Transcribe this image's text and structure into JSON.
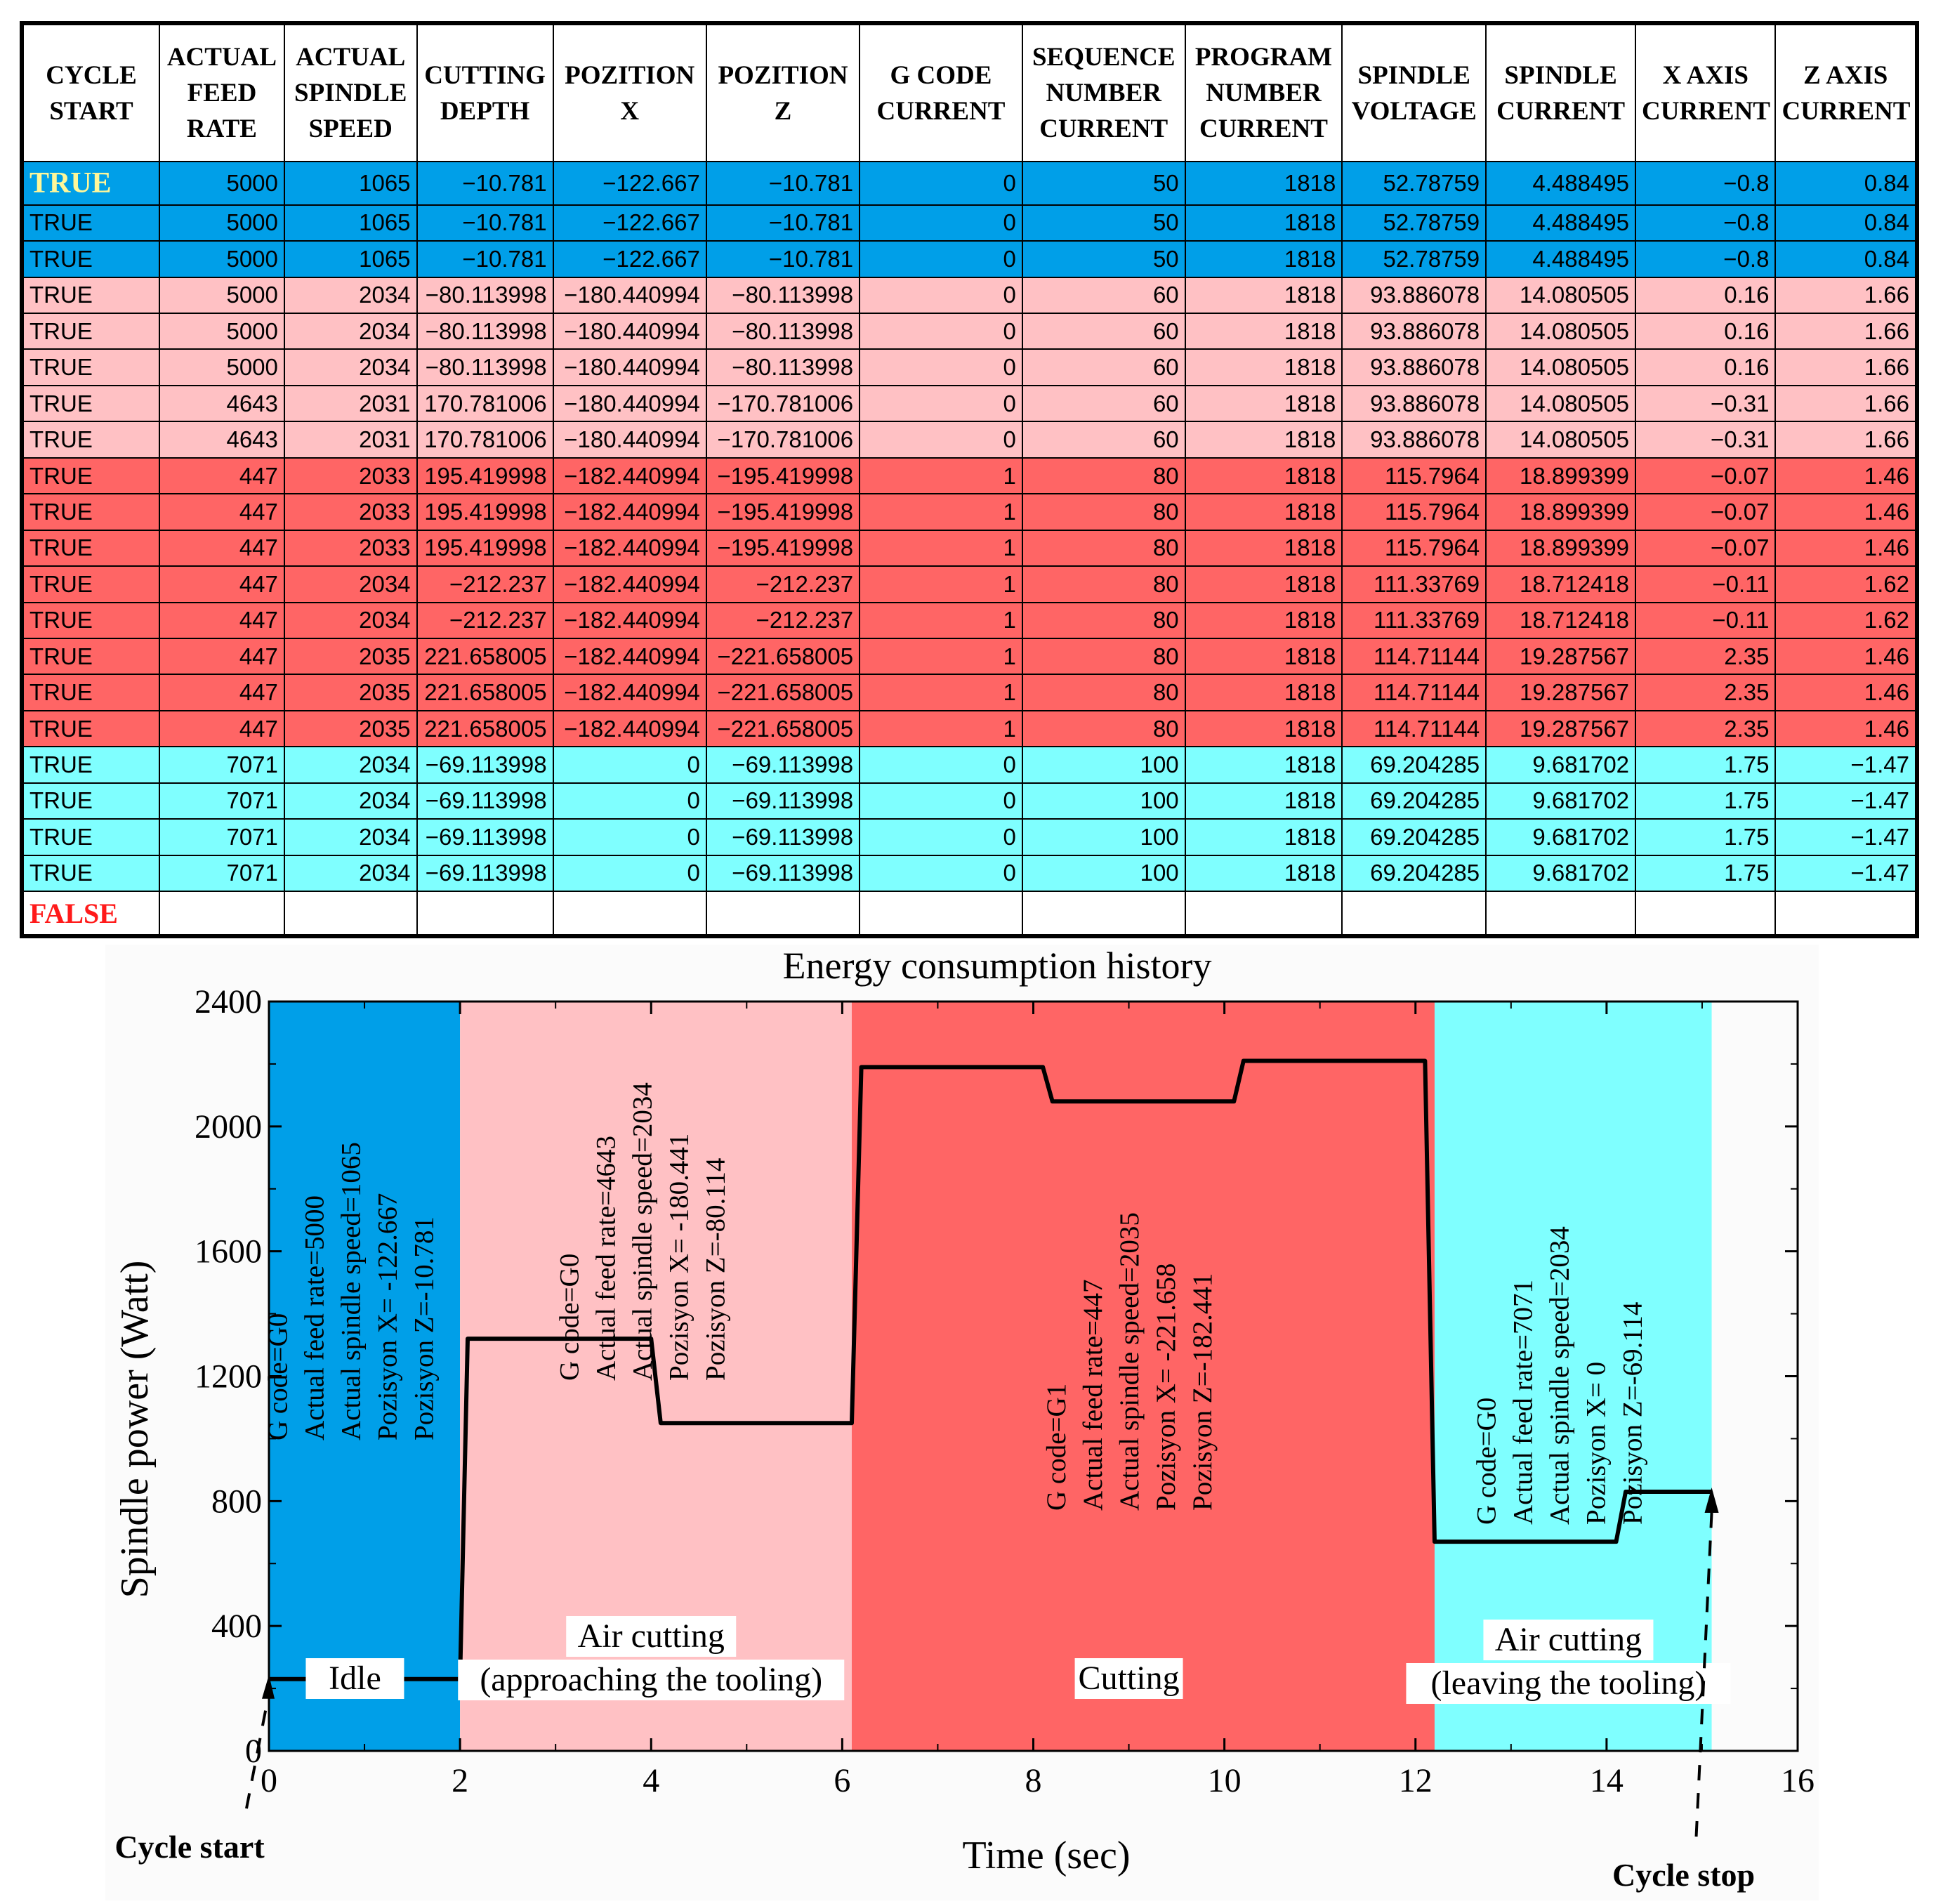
{
  "table": {
    "headers": [
      "CYCLE START",
      "ACTUAL FEED RATE",
      "ACTUAL SPINDLE SPEED",
      "CUTTING DEPTH",
      "POZITION X",
      "POZITION Z",
      "G CODE CURRENT",
      "SEQUENCE NUMBER CURRENT",
      "PROGRAM NUMBER CURRENT",
      "SPINDLE VOLTAGE",
      "SPINDLE CURRENT",
      "X AXIS CURRENT",
      "Z AXIS CURRENT"
    ],
    "rows": [
      {
        "phase": "idle",
        "cells": [
          "TRUE",
          "5000",
          "1065",
          "−10.781",
          "−122.667",
          "−10.781",
          "0",
          "50",
          "1818",
          "52.78759",
          "4.488495",
          "−0.8",
          "0.84"
        ]
      },
      {
        "phase": "idle",
        "cells": [
          "TRUE",
          "5000",
          "1065",
          "−10.781",
          "−122.667",
          "−10.781",
          "0",
          "50",
          "1818",
          "52.78759",
          "4.488495",
          "−0.8",
          "0.84"
        ]
      },
      {
        "phase": "idle",
        "cells": [
          "TRUE",
          "5000",
          "1065",
          "−10.781",
          "−122.667",
          "−10.781",
          "0",
          "50",
          "1818",
          "52.78759",
          "4.488495",
          "−0.8",
          "0.84"
        ]
      },
      {
        "phase": "approach",
        "cells": [
          "TRUE",
          "5000",
          "2034",
          "−80.113998",
          "−180.440994",
          "−80.113998",
          "0",
          "60",
          "1818",
          "93.886078",
          "14.080505",
          "0.16",
          "1.66"
        ]
      },
      {
        "phase": "approach",
        "cells": [
          "TRUE",
          "5000",
          "2034",
          "−80.113998",
          "−180.440994",
          "−80.113998",
          "0",
          "60",
          "1818",
          "93.886078",
          "14.080505",
          "0.16",
          "1.66"
        ]
      },
      {
        "phase": "approach",
        "cells": [
          "TRUE",
          "5000",
          "2034",
          "−80.113998",
          "−180.440994",
          "−80.113998",
          "0",
          "60",
          "1818",
          "93.886078",
          "14.080505",
          "0.16",
          "1.66"
        ]
      },
      {
        "phase": "approach",
        "cells": [
          "TRUE",
          "4643",
          "2031",
          "170.781006",
          "−180.440994",
          "−170.781006",
          "0",
          "60",
          "1818",
          "93.886078",
          "14.080505",
          "−0.31",
          "1.66"
        ]
      },
      {
        "phase": "approach",
        "cells": [
          "TRUE",
          "4643",
          "2031",
          "170.781006",
          "−180.440994",
          "−170.781006",
          "0",
          "60",
          "1818",
          "93.886078",
          "14.080505",
          "−0.31",
          "1.66"
        ]
      },
      {
        "phase": "cutting",
        "cells": [
          "TRUE",
          "447",
          "2033",
          "195.419998",
          "−182.440994",
          "−195.419998",
          "1",
          "80",
          "1818",
          "115.7964",
          "18.899399",
          "−0.07",
          "1.46"
        ]
      },
      {
        "phase": "cutting",
        "cells": [
          "TRUE",
          "447",
          "2033",
          "195.419998",
          "−182.440994",
          "−195.419998",
          "1",
          "80",
          "1818",
          "115.7964",
          "18.899399",
          "−0.07",
          "1.46"
        ]
      },
      {
        "phase": "cutting",
        "cells": [
          "TRUE",
          "447",
          "2033",
          "195.419998",
          "−182.440994",
          "−195.419998",
          "1",
          "80",
          "1818",
          "115.7964",
          "18.899399",
          "−0.07",
          "1.46"
        ]
      },
      {
        "phase": "cutting",
        "cells": [
          "TRUE",
          "447",
          "2034",
          "−212.237",
          "−182.440994",
          "−212.237",
          "1",
          "80",
          "1818",
          "111.33769",
          "18.712418",
          "−0.11",
          "1.62"
        ]
      },
      {
        "phase": "cutting",
        "cells": [
          "TRUE",
          "447",
          "2034",
          "−212.237",
          "−182.440994",
          "−212.237",
          "1",
          "80",
          "1818",
          "111.33769",
          "18.712418",
          "−0.11",
          "1.62"
        ]
      },
      {
        "phase": "cutting",
        "cells": [
          "TRUE",
          "447",
          "2035",
          "221.658005",
          "−182.440994",
          "−221.658005",
          "1",
          "80",
          "1818",
          "114.71144",
          "19.287567",
          "2.35",
          "1.46"
        ]
      },
      {
        "phase": "cutting",
        "cells": [
          "TRUE",
          "447",
          "2035",
          "221.658005",
          "−182.440994",
          "−221.658005",
          "1",
          "80",
          "1818",
          "114.71144",
          "19.287567",
          "2.35",
          "1.46"
        ]
      },
      {
        "phase": "cutting",
        "cells": [
          "TRUE",
          "447",
          "2035",
          "221.658005",
          "−182.440994",
          "−221.658005",
          "1",
          "80",
          "1818",
          "114.71144",
          "19.287567",
          "2.35",
          "1.46"
        ]
      },
      {
        "phase": "leave",
        "cells": [
          "TRUE",
          "7071",
          "2034",
          "−69.113998",
          "0",
          "−69.113998",
          "0",
          "100",
          "1818",
          "69.204285",
          "9.681702",
          "1.75",
          "−1.47"
        ]
      },
      {
        "phase": "leave",
        "cells": [
          "TRUE",
          "7071",
          "2034",
          "−69.113998",
          "0",
          "−69.113998",
          "0",
          "100",
          "1818",
          "69.204285",
          "9.681702",
          "1.75",
          "−1.47"
        ]
      },
      {
        "phase": "leave",
        "cells": [
          "TRUE",
          "7071",
          "2034",
          "−69.113998",
          "0",
          "−69.113998",
          "0",
          "100",
          "1818",
          "69.204285",
          "9.681702",
          "1.75",
          "−1.47"
        ]
      },
      {
        "phase": "leave",
        "cells": [
          "TRUE",
          "7071",
          "2034",
          "−69.113998",
          "0",
          "−69.113998",
          "0",
          "100",
          "1818",
          "69.204285",
          "9.681702",
          "1.75",
          "−1.47"
        ]
      },
      {
        "phase": "end",
        "cells": [
          "FALSE",
          "",
          "",
          "",
          "",
          "",
          "",
          "",
          "",
          "",
          "",
          "",
          ""
        ]
      }
    ]
  },
  "colors": {
    "idle": "#009fe8",
    "approach": "#ffc1c4",
    "cutting": "#ff6565",
    "leave": "#7fffff"
  },
  "chart_data": {
    "type": "line",
    "title": "Energy consumption history",
    "xlabel": "Time (sec)",
    "ylabel": "Spindle power (Watt)",
    "xlim": [
      0,
      16
    ],
    "ylim": [
      0,
      2400
    ],
    "xticks": [
      0,
      2,
      4,
      6,
      8,
      10,
      12,
      14,
      16
    ],
    "yticks": [
      0,
      400,
      800,
      1200,
      1600,
      2000,
      2400
    ],
    "series": [
      {
        "name": "Spindle power",
        "x": [
          0,
          2.0,
          2.08,
          4.0,
          4.1,
          6.1,
          6.2,
          8.1,
          8.2,
          10.1,
          10.2,
          12.1,
          12.2,
          14.1,
          14.2,
          15.1
        ],
        "y": [
          230,
          230,
          1320,
          1320,
          1050,
          1050,
          2190,
          2190,
          2080,
          2080,
          2210,
          2210,
          670,
          670,
          830,
          830
        ]
      }
    ],
    "regions": [
      {
        "phase": "idle",
        "x0": 0,
        "x1": 2.0,
        "label": [
          "Idle"
        ],
        "annotations": [
          "G code=G0",
          "Actual feed rate=5000",
          "Actual spindle speed=1065",
          "Pozisyon X= -122.667",
          "Pozisyon Z=-10.781"
        ]
      },
      {
        "phase": "approach",
        "x0": 2.0,
        "x1": 6.1,
        "label": [
          "Air cutting",
          "(approaching the tooling)"
        ],
        "annotations": [
          "G code=G0",
          "Actual feed rate=4643",
          "Actual spindle speed=2034",
          "Pozisyon X= -180.441",
          "Pozisyon Z=-80.114"
        ]
      },
      {
        "phase": "cutting",
        "x0": 6.1,
        "x1": 12.2,
        "label": [
          "Cutting"
        ],
        "annotations": [
          "G code=G1",
          "Actual feed rate=447",
          "Actual spindle speed=2035",
          "Pozisyon X= -221.658",
          "Pozisyon Z=-182.441"
        ]
      },
      {
        "phase": "leave",
        "x0": 12.2,
        "x1": 15.1,
        "label": [
          "Air cutting",
          "(leaving the tooling)"
        ],
        "annotations": [
          "G code=G0",
          "Actual feed rate=7071",
          "Actual spindle speed=2034",
          "Pozisyon X= 0",
          "Pozisyon Z=-69.114"
        ]
      }
    ],
    "markers": [
      {
        "label": "Cycle start",
        "x": 0
      },
      {
        "label": "Cycle stop",
        "x": 15.1
      }
    ]
  }
}
